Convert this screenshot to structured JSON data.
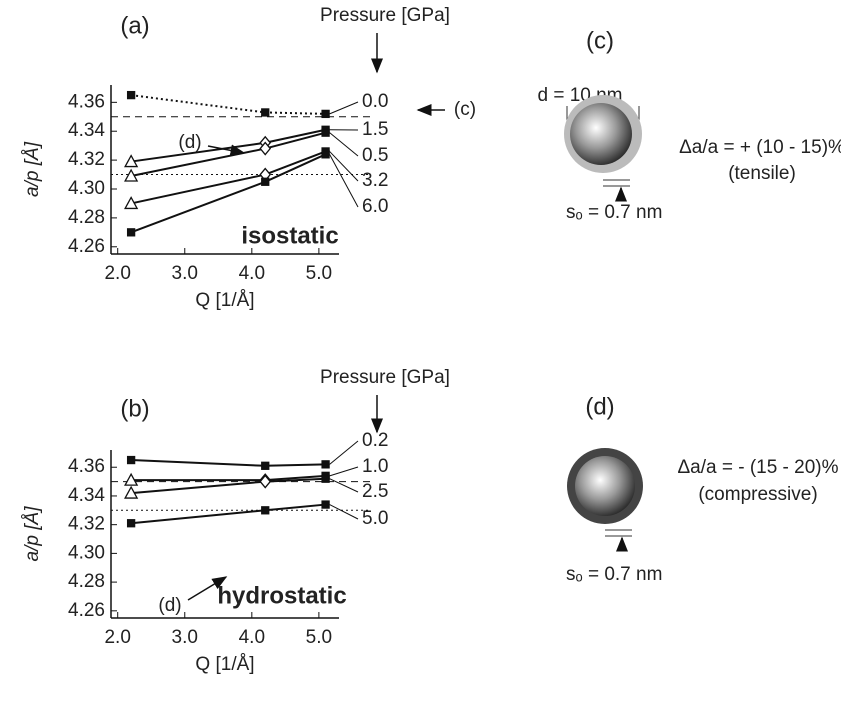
{
  "chart_data": [
    {
      "type": "line",
      "title": "(a)",
      "xlabel": "Q   [1/Å]",
      "ylabel": "a/p   [Å]",
      "legend_title": "Pressure [GPa]",
      "annotations": [
        "(d)",
        "(c)",
        "isostatic"
      ],
      "x": [
        2.2,
        4.2,
        5.1
      ],
      "xlim": [
        1.9,
        5.3
      ],
      "xticks": [
        {
          "value": 2,
          "label": "2.0"
        },
        {
          "value": 3,
          "label": "3.0"
        },
        {
          "value": 4,
          "label": "4.0"
        },
        {
          "value": 5,
          "label": "5.0"
        }
      ],
      "ylim": [
        4.255,
        4.372
      ],
      "yticks": [
        4.26,
        4.28,
        {
          "value": 4.3,
          "label": "4.30"
        },
        4.32,
        4.34,
        4.36
      ],
      "markers": [
        "triangle",
        "diamond",
        "square"
      ],
      "color": "#111",
      "reference_lines": [
        {
          "value": 4.35,
          "style": "dashed"
        },
        {
          "value": 4.31,
          "style": "dotted"
        }
      ],
      "series": [
        {
          "name": "0.0",
          "values": [
            4.365,
            4.353,
            4.352
          ],
          "style": "dotted",
          "marker": "square"
        },
        {
          "name": "1.5",
          "values": [
            4.319,
            4.332,
            4.341
          ],
          "style": "solid"
        },
        {
          "name": "0.5",
          "values": [
            4.309,
            4.328,
            4.339
          ],
          "style": "solid"
        },
        {
          "name": "3.2",
          "values": [
            4.29,
            4.31,
            4.326
          ],
          "style": "solid"
        },
        {
          "name": "6.0",
          "values": [
            4.27,
            4.305,
            4.324
          ],
          "style": "solid",
          "marker": "square"
        }
      ]
    },
    {
      "type": "line",
      "title": "(b)",
      "xlabel": "Q   [1/Å]",
      "ylabel": "a/p   [Å]",
      "legend_title": "Pressure [GPa]",
      "annotations": [
        "(d)",
        "hydrostatic"
      ],
      "x": [
        2.2,
        4.2,
        5.1
      ],
      "xlim": [
        1.9,
        5.3
      ],
      "xticks": [
        {
          "value": 2,
          "label": "2.0"
        },
        {
          "value": 3,
          "label": "3.0"
        },
        {
          "value": 4,
          "label": "4.0"
        },
        {
          "value": 5,
          "label": "5.0"
        }
      ],
      "ylim": [
        4.255,
        4.372
      ],
      "yticks": [
        4.26,
        4.28,
        {
          "value": 4.3,
          "label": "4.30"
        },
        4.32,
        4.34,
        4.36
      ],
      "markers": [
        "triangle",
        "diamond",
        "square"
      ],
      "color": "#111",
      "reference_lines": [
        {
          "value": 4.35,
          "style": "dashed"
        },
        {
          "value": 4.33,
          "style": "dotted"
        }
      ],
      "series": [
        {
          "name": "0.2",
          "values": [
            4.365,
            4.361,
            4.362
          ],
          "style": "solid",
          "marker": "square"
        },
        {
          "name": "1.0",
          "values": [
            4.351,
            4.351,
            4.354
          ],
          "style": "solid"
        },
        {
          "name": "2.5",
          "values": [
            4.342,
            4.35,
            4.352
          ],
          "style": "solid"
        },
        {
          "name": "5.0",
          "values": [
            4.321,
            4.33,
            4.334
          ],
          "style": "solid",
          "marker": "square"
        }
      ]
    }
  ],
  "diagrams": [
    {
      "label": "(c)",
      "diameter": "d = 10 nm",
      "strain": "Δa/a = + (10 - 15)%",
      "kind": "(tensile)",
      "shell": "sₒ = 0.7 nm"
    },
    {
      "label": "(d)",
      "strain": "Δa/a = - (15 - 20)%",
      "kind": "(compressive)",
      "shell": "sₒ = 0.7 nm"
    }
  ]
}
